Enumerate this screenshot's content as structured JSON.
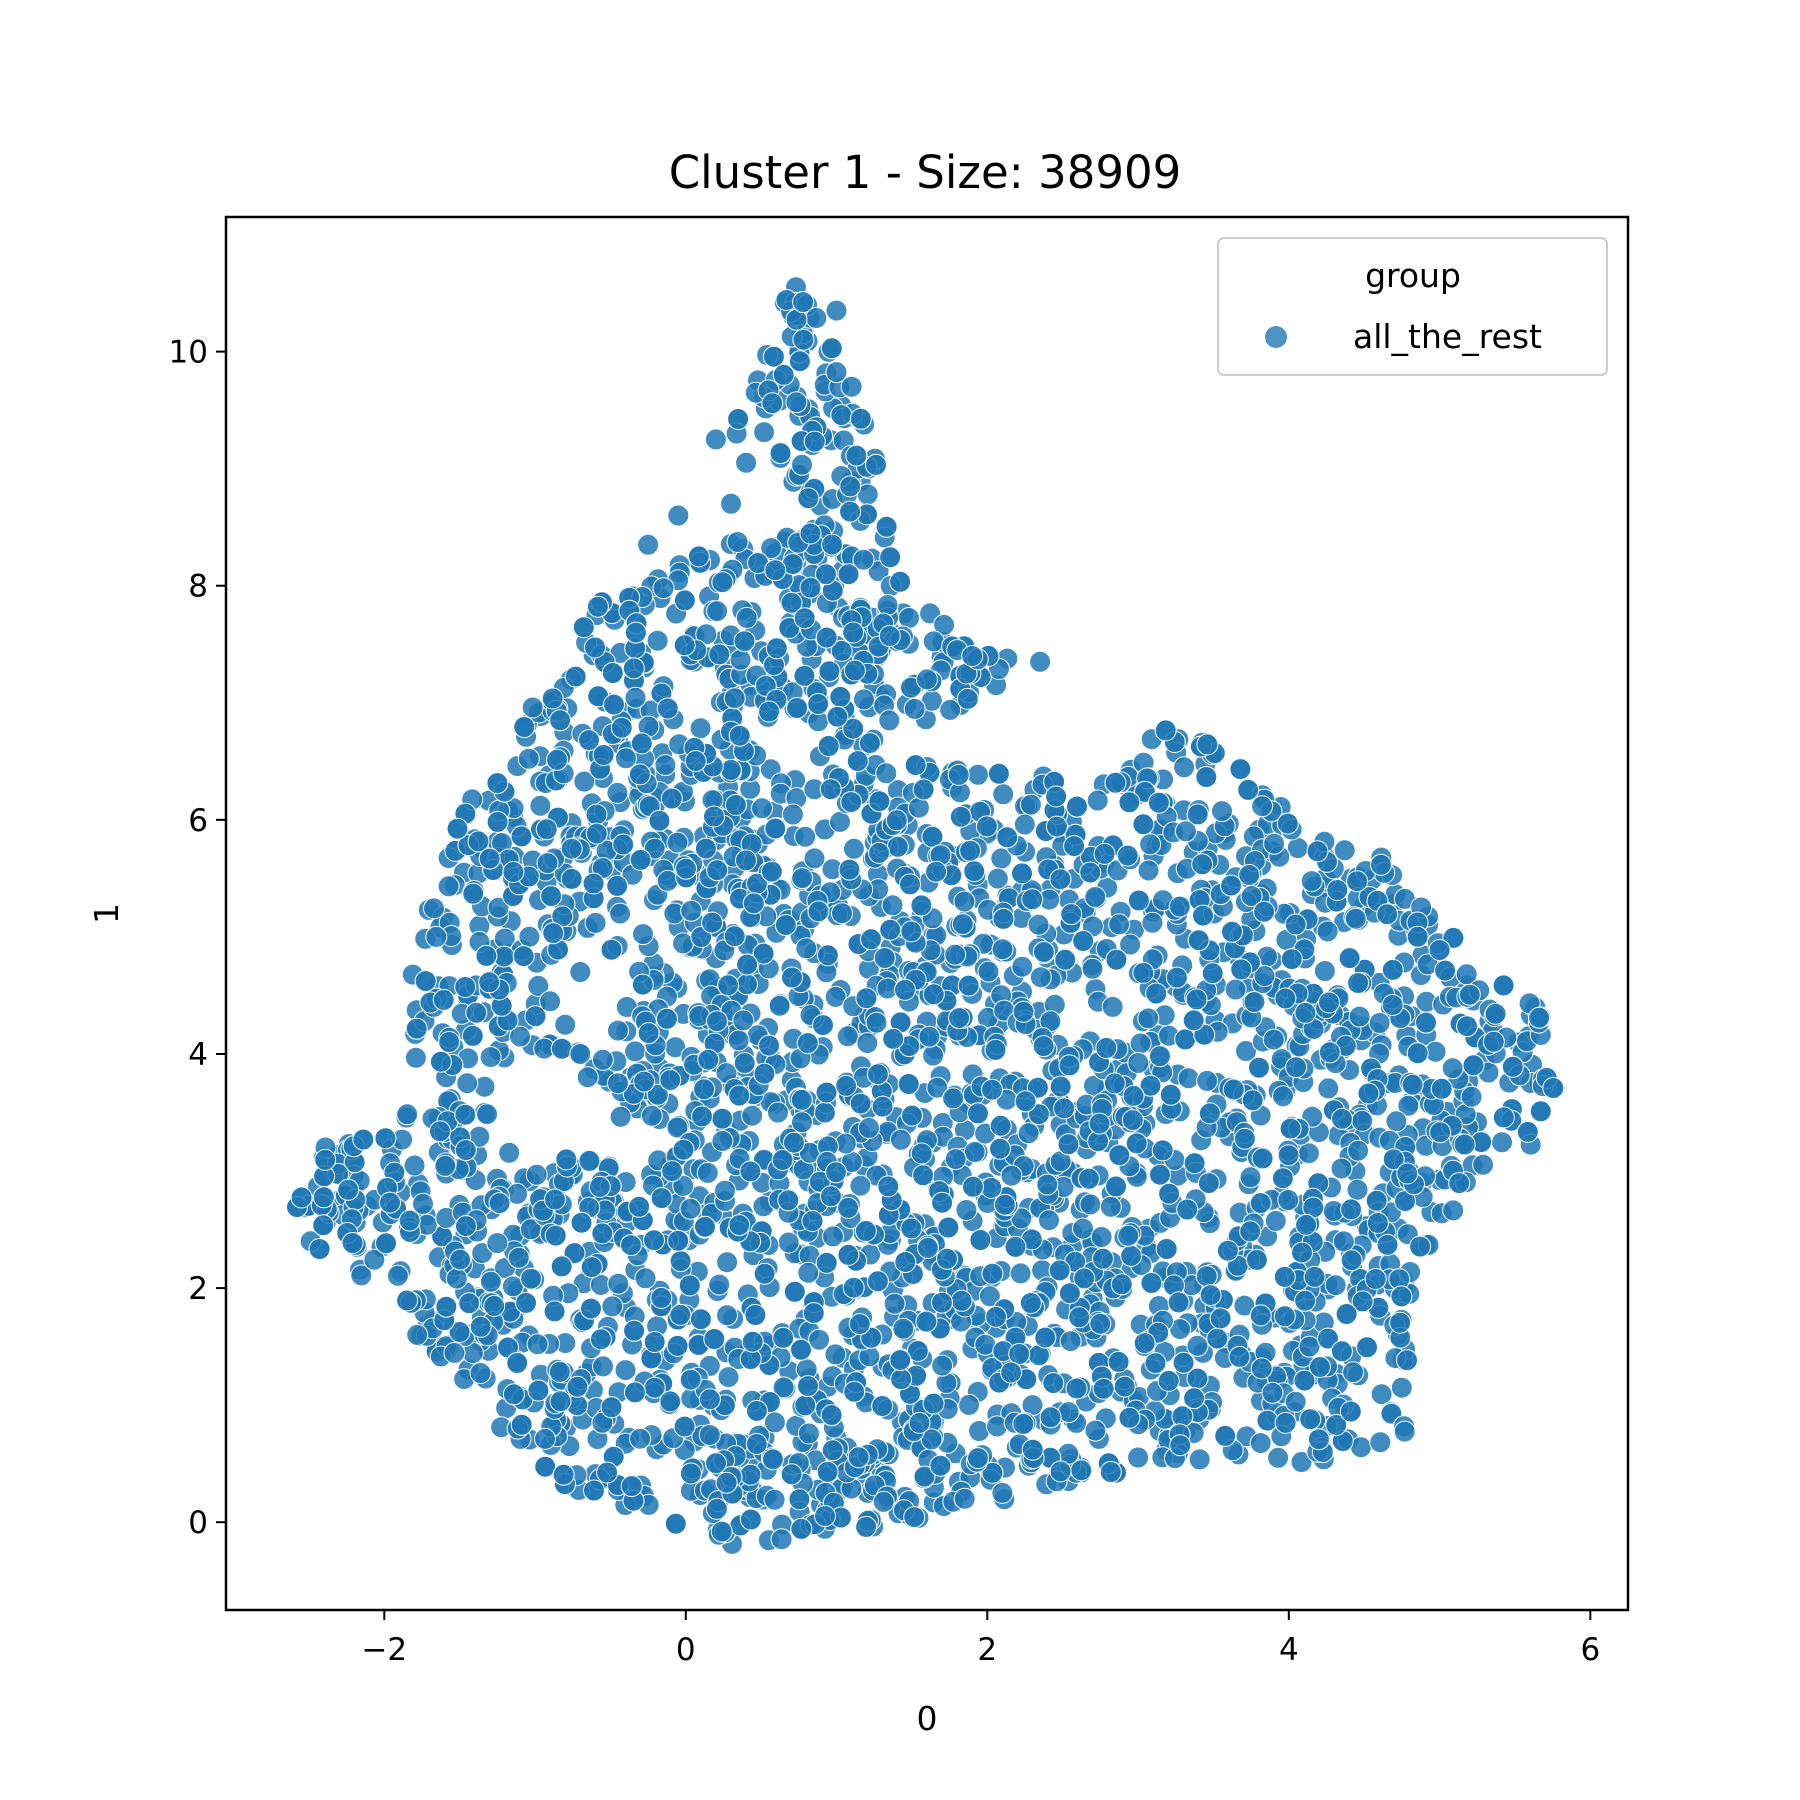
{
  "chart_data": {
    "type": "scatter",
    "title": "Cluster 1 - Size: 38909",
    "xlabel": "0",
    "ylabel": "1",
    "xlim": [
      -3.05,
      6.25
    ],
    "ylim": [
      -0.75,
      11.15
    ],
    "xticks": [
      -2,
      0,
      2,
      4,
      6
    ],
    "xtick_labels": [
      "−2",
      "0",
      "2",
      "4",
      "6"
    ],
    "yticks": [
      0,
      2,
      4,
      6,
      8,
      10
    ],
    "ytick_labels": [
      "0",
      "2",
      "4",
      "6",
      "8",
      "10"
    ],
    "grid": false,
    "legend": {
      "title": "group",
      "placement": "upper right",
      "entries": [
        "all_the_rest"
      ]
    },
    "series": [
      {
        "name": "all_the_rest",
        "color": "#1f77b4",
        "point_count": 38909,
        "region_outline": [
          [
            -2.6,
            2.65
          ],
          [
            -2.4,
            3.2
          ],
          [
            -2.05,
            3.35
          ],
          [
            -1.8,
            3.7
          ],
          [
            -1.8,
            4.4
          ],
          [
            -1.85,
            4.95
          ],
          [
            -1.65,
            5.6
          ],
          [
            -1.45,
            6.15
          ],
          [
            -1.15,
            6.7
          ],
          [
            -0.85,
            7.3
          ],
          [
            -0.6,
            7.85
          ],
          [
            -0.3,
            8.1
          ],
          [
            0.2,
            8.35
          ],
          [
            0.55,
            8.45
          ],
          [
            0.8,
            8.55
          ],
          [
            0.6,
            9.1
          ],
          [
            0.25,
            9.3
          ],
          [
            0.5,
            9.9
          ],
          [
            0.7,
            10.6
          ],
          [
            0.9,
            10.35
          ],
          [
            1.05,
            9.75
          ],
          [
            1.25,
            9.3
          ],
          [
            1.3,
            8.7
          ],
          [
            1.45,
            8.0
          ],
          [
            1.95,
            7.5
          ],
          [
            2.3,
            7.3
          ],
          [
            1.3,
            6.6
          ],
          [
            2.0,
            6.4
          ],
          [
            2.85,
            6.35
          ],
          [
            3.1,
            6.8
          ],
          [
            3.5,
            6.7
          ],
          [
            3.95,
            6.2
          ],
          [
            4.6,
            5.7
          ],
          [
            4.95,
            5.15
          ],
          [
            5.35,
            4.75
          ],
          [
            5.65,
            4.45
          ],
          [
            5.85,
            3.9
          ],
          [
            5.65,
            3.2
          ],
          [
            5.0,
            2.55
          ],
          [
            4.8,
            2.05
          ],
          [
            4.8,
            1.6
          ],
          [
            4.8,
            0.7
          ],
          [
            4.3,
            0.5
          ],
          [
            3.8,
            0.45
          ],
          [
            3.3,
            0.55
          ],
          [
            2.8,
            0.4
          ],
          [
            2.3,
            0.25
          ],
          [
            1.6,
            0.05
          ],
          [
            1.0,
            -0.1
          ],
          [
            0.3,
            -0.2
          ],
          [
            -0.3,
            0.1
          ],
          [
            -0.9,
            0.35
          ],
          [
            -1.3,
            0.9
          ],
          [
            -1.6,
            1.3
          ],
          [
            -2.0,
            1.9
          ],
          [
            -2.6,
            2.4
          ]
        ],
        "hole_outlines": [
          [
            [
              -0.95,
              4.5
            ],
            [
              -0.75,
              5.0
            ],
            [
              -0.55,
              5.0
            ],
            [
              -0.4,
              4.55
            ],
            [
              -0.5,
              4.0
            ],
            [
              -0.85,
              4.05
            ]
          ],
          [
            [
              -1.35,
              3.2
            ],
            [
              -1.2,
              3.9
            ],
            [
              -0.95,
              4.05
            ],
            [
              -0.6,
              3.5
            ],
            [
              -0.2,
              3.4
            ],
            [
              -0.15,
              3.1
            ],
            [
              -0.9,
              3.1
            ]
          ],
          [
            [
              3.35,
              6.15
            ],
            [
              3.55,
              6.55
            ],
            [
              3.75,
              6.35
            ],
            [
              3.55,
              6.1
            ]
          ],
          [
            [
              0.55,
              6.55
            ],
            [
              0.75,
              6.95
            ],
            [
              0.9,
              6.75
            ],
            [
              0.7,
              6.5
            ]
          ],
          [
            [
              -0.05,
              7.0
            ],
            [
              0.15,
              7.3
            ],
            [
              0.3,
              7.1
            ],
            [
              0.1,
              6.9
            ]
          ]
        ],
        "sparse_points": [
          [
            2.35,
            7.35
          ],
          [
            1.8,
            7.45
          ],
          [
            1.6,
            7.2
          ],
          [
            1.9,
            7.4
          ],
          [
            1.35,
            6.85
          ],
          [
            -0.7,
            4.7
          ],
          [
            -0.8,
            4.25
          ],
          [
            -0.7,
            4.0
          ],
          [
            -0.55,
            3.95
          ],
          [
            -0.45,
            4.2
          ],
          [
            -0.45,
            3.75
          ],
          [
            -0.05,
            8.6
          ],
          [
            0.3,
            8.7
          ],
          [
            0.2,
            9.25
          ],
          [
            0.4,
            9.05
          ],
          [
            -0.25,
            8.35
          ],
          [
            1.0,
            10.35
          ],
          [
            1.1,
            9.7
          ],
          [
            2.1,
            0.25
          ],
          [
            1.85,
            0.2
          ],
          [
            -1.45,
            3.75
          ],
          [
            -0.9,
            4.45
          ]
        ]
      }
    ]
  }
}
